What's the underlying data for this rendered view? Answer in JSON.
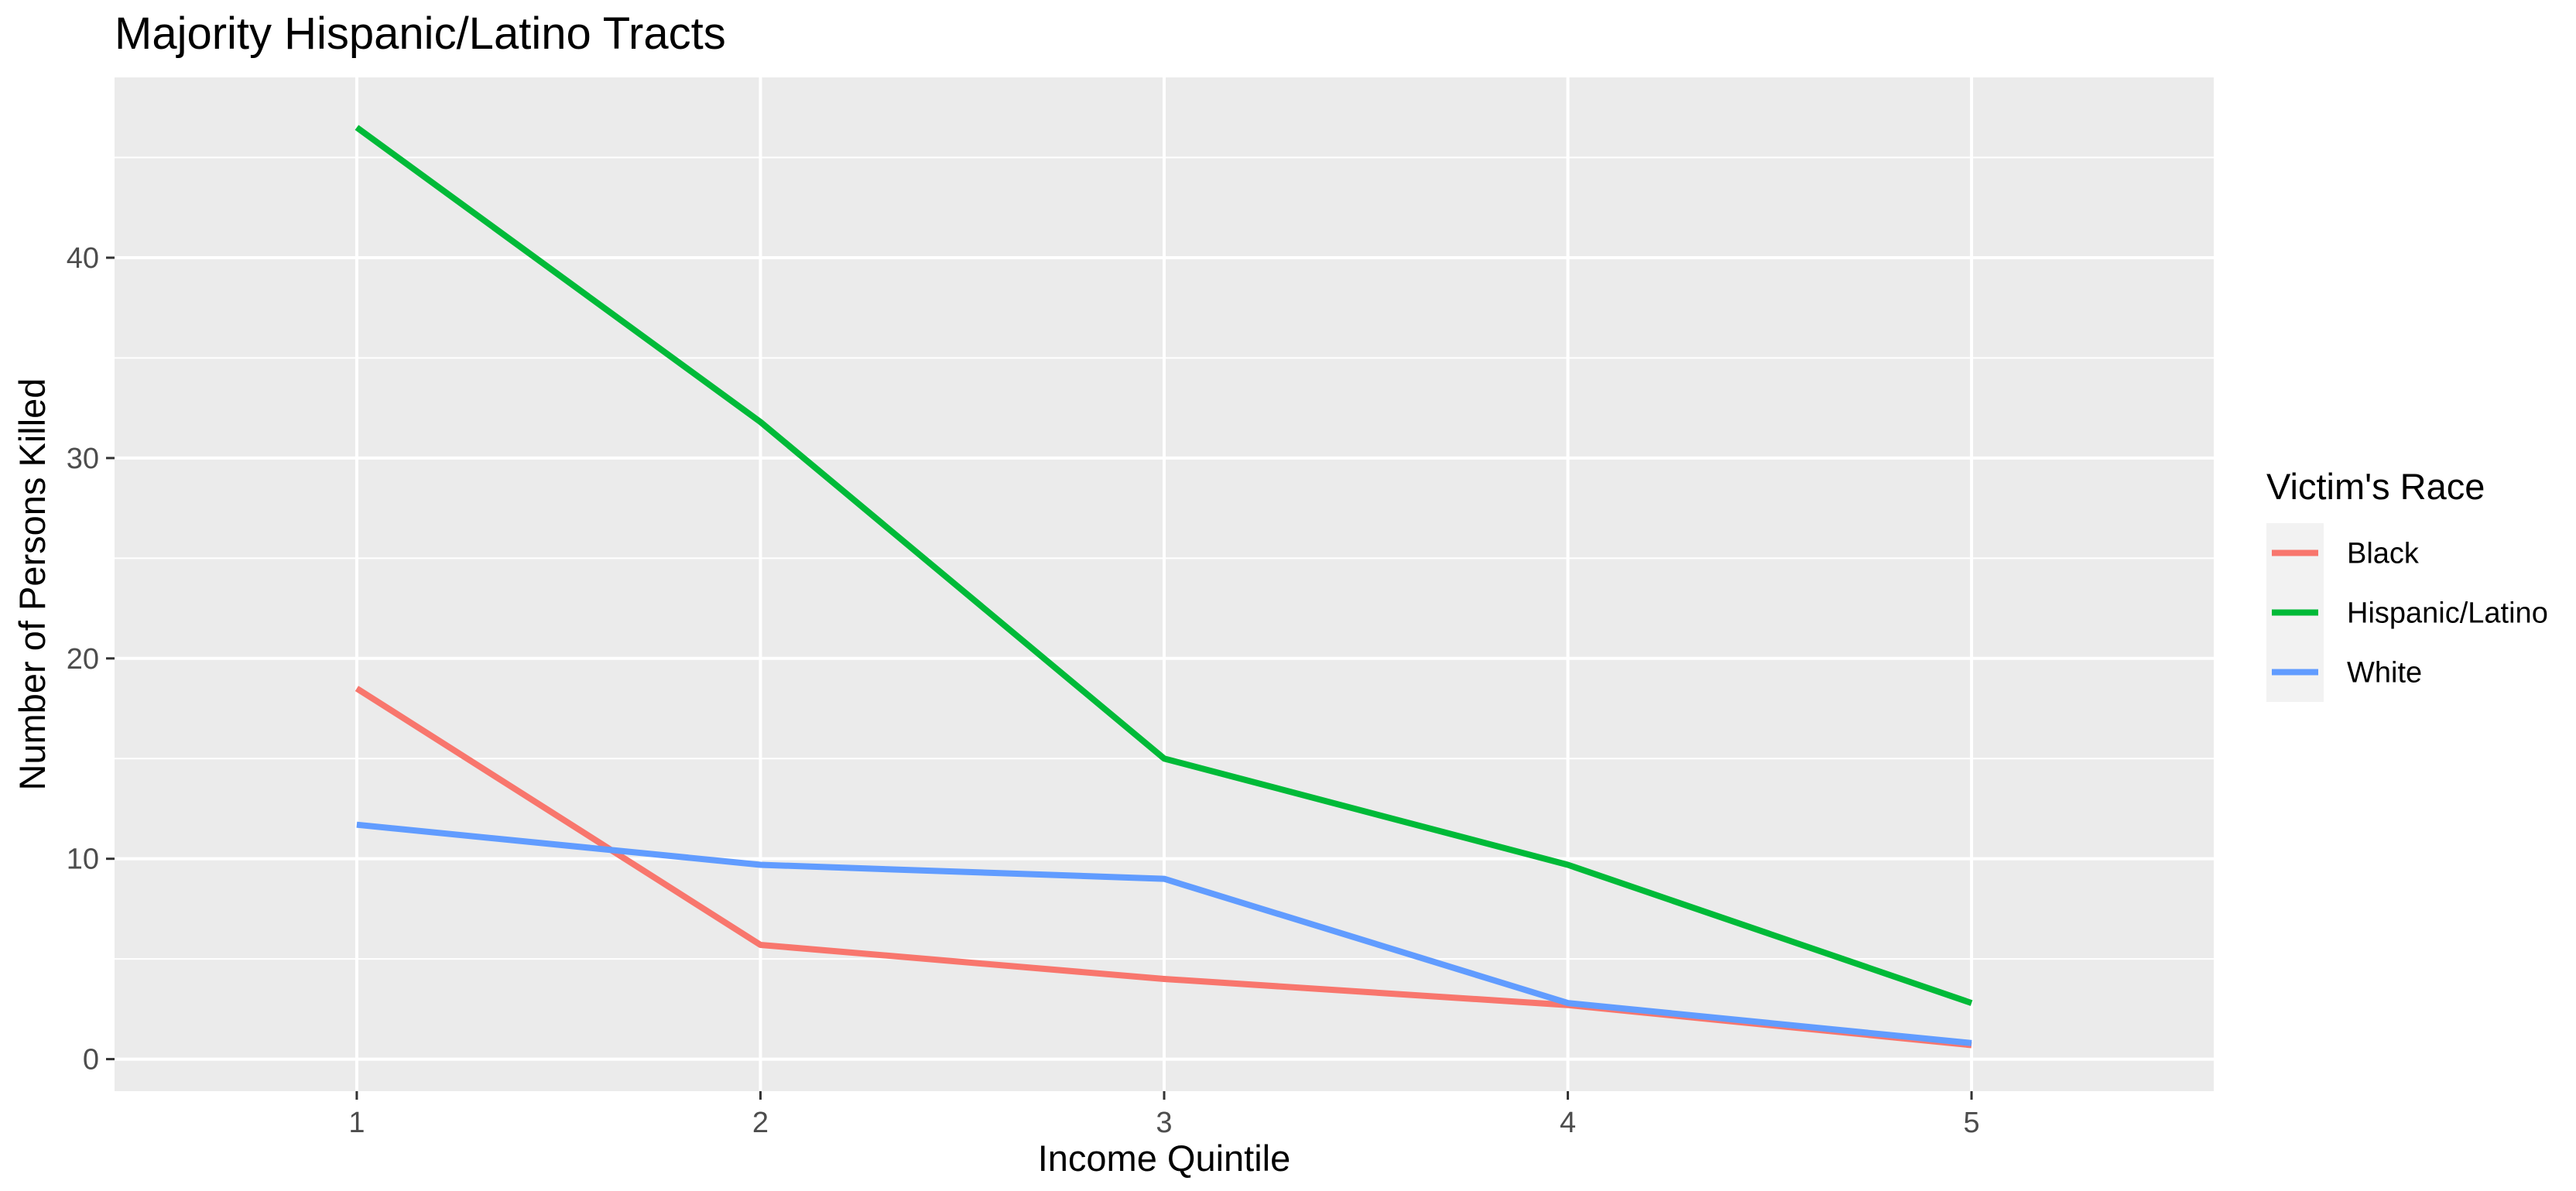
{
  "chart_data": {
    "type": "line",
    "title": "Majority Hispanic/Latino Tracts",
    "xlabel": "Income Quintile",
    "ylabel": "Number of Persons Killed",
    "x": [
      1,
      2,
      3,
      4,
      5
    ],
    "xlim": [
      0.4,
      5.6
    ],
    "ylim": [
      -1.6,
      49.0
    ],
    "x_ticks": [
      1,
      2,
      3,
      4,
      5
    ],
    "y_ticks": [
      0,
      10,
      20,
      30,
      40
    ],
    "grid": true,
    "legend": {
      "title": "Victim's Race",
      "position": "right"
    },
    "series": [
      {
        "name": "Black",
        "color": "#f8766d",
        "values": [
          18.5,
          5.7,
          4.0,
          2.7,
          0.7
        ]
      },
      {
        "name": "Hispanic/Latino",
        "color": "#00ba38",
        "values": [
          46.5,
          31.8,
          15.0,
          9.7,
          2.8
        ]
      },
      {
        "name": "White",
        "color": "#619cff",
        "values": [
          11.7,
          9.7,
          9.0,
          2.8,
          0.8
        ]
      }
    ]
  }
}
